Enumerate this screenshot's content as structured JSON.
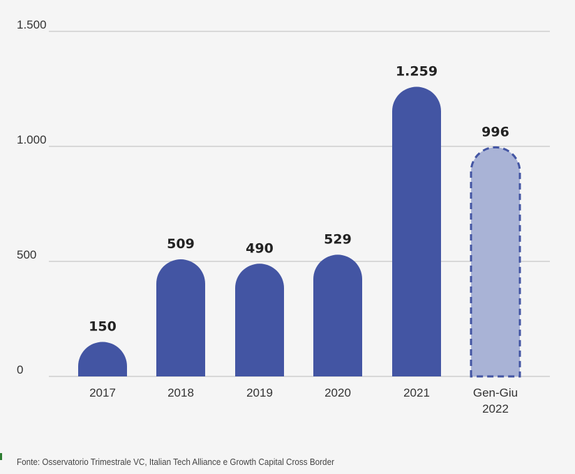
{
  "chart_data": {
    "type": "bar",
    "categories": [
      [
        "2017"
      ],
      [
        "2018"
      ],
      [
        "2019"
      ],
      [
        "2020"
      ],
      [
        "2021"
      ],
      [
        "Gen-Giu",
        "2022"
      ]
    ],
    "values": [
      150,
      509,
      490,
      529,
      1259,
      996
    ],
    "value_labels": [
      "150",
      "509",
      "490",
      "529",
      "1.259",
      "996"
    ],
    "estimated": [
      false,
      false,
      false,
      false,
      false,
      true
    ],
    "yticks": [
      0,
      500,
      1000,
      1500
    ],
    "ytick_labels": [
      "0",
      "500",
      "1.000",
      "1.500"
    ],
    "ylim": [
      0,
      1500
    ],
    "grid": true,
    "colors": {
      "bar": "#4355a3",
      "partial_fill": "#a9b3d6",
      "partial_stroke": "#4355a3",
      "grid": "#c8c8c8"
    }
  },
  "source": "Fonte: Osservatorio Trimestrale VC, Italian Tech Alliance e Growth Capital Cross Border"
}
